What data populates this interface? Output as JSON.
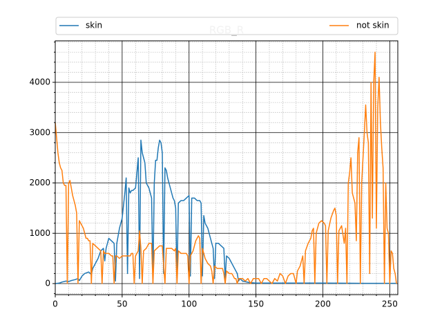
{
  "chart_data": {
    "type": "line",
    "title": "RGB_R",
    "xlim": [
      0,
      256
    ],
    "ylim": [
      -220,
      4825
    ],
    "xticks": [
      0,
      50,
      100,
      150,
      200,
      250
    ],
    "yticks": [
      0,
      1000,
      2000,
      3000,
      4000
    ],
    "xminorticks": [
      10,
      20,
      30,
      40,
      60,
      70,
      80,
      90,
      110,
      120,
      130,
      140,
      160,
      170,
      180,
      190,
      210,
      220,
      230,
      240
    ],
    "yminorticks": [
      -200,
      200,
      400,
      600,
      800,
      1200,
      1400,
      1600,
      1800,
      2200,
      2400,
      2600,
      2800,
      3200,
      3400,
      3600,
      3800,
      4200,
      4400,
      4600,
      4800
    ],
    "grid": true,
    "legend": "top",
    "series": [
      {
        "name": "skin",
        "color": "#1f77b4",
        "x": [
          0,
          3,
          5,
          8,
          10,
          12,
          15,
          17,
          18,
          20,
          22,
          25,
          27,
          28,
          30,
          32,
          34,
          36,
          37,
          38,
          40,
          42,
          44,
          45,
          46,
          48,
          50,
          52,
          53,
          54,
          55,
          56,
          57,
          58,
          60,
          61,
          62,
          63,
          64,
          65,
          66,
          67,
          68,
          70,
          71,
          72,
          73,
          74,
          75,
          76,
          77,
          78,
          79,
          80,
          81,
          82,
          83,
          84,
          86,
          88,
          89,
          90,
          91,
          92,
          94,
          96,
          98,
          100,
          101,
          102,
          104,
          106,
          108,
          109,
          110,
          111,
          112,
          114,
          116,
          118,
          119,
          120,
          122,
          124,
          126,
          127,
          128,
          130,
          132,
          134,
          136,
          137,
          138,
          140,
          145,
          150,
          170,
          200,
          230,
          255
        ],
        "values": [
          0,
          10,
          30,
          50,
          40,
          60,
          80,
          100,
          60,
          150,
          200,
          230,
          180,
          300,
          400,
          500,
          650,
          700,
          450,
          700,
          900,
          850,
          800,
          50,
          800,
          1100,
          1300,
          1800,
          2100,
          200,
          1900,
          1800,
          1850,
          1850,
          1900,
          2200,
          2500,
          100,
          2850,
          2600,
          2500,
          2400,
          2000,
          1900,
          1800,
          1700,
          100,
          2000,
          2450,
          2450,
          2700,
          2850,
          2800,
          2600,
          200,
          2300,
          2250,
          2100,
          1900,
          1700,
          1650,
          1500,
          100,
          1600,
          1650,
          1650,
          1700,
          1750,
          150,
          1700,
          1700,
          1650,
          1650,
          1600,
          150,
          1350,
          1200,
          1100,
          900,
          700,
          100,
          800,
          800,
          750,
          700,
          100,
          550,
          500,
          400,
          300,
          200,
          50,
          100,
          50,
          20,
          10,
          10,
          10,
          5,
          5
        ]
      },
      {
        "name": "not skin",
        "color": "#ff7f0e",
        "x": [
          0,
          1,
          2,
          3,
          4,
          5,
          6,
          7,
          8,
          9,
          10,
          11,
          12,
          13,
          14,
          15,
          16,
          17,
          18,
          19,
          20,
          21,
          22,
          23,
          24,
          25,
          26,
          27,
          28,
          30,
          32,
          34,
          35,
          36,
          37,
          38,
          40,
          42,
          43,
          44,
          45,
          46,
          48,
          50,
          52,
          54,
          56,
          57,
          58,
          59,
          60,
          62,
          63,
          64,
          65,
          66,
          68,
          70,
          72,
          73,
          74,
          76,
          78,
          80,
          82,
          83,
          85,
          87,
          89,
          90,
          91,
          92,
          94,
          96,
          98,
          99,
          100,
          101,
          103,
          105,
          107,
          108,
          109,
          110,
          112,
          114,
          116,
          117,
          118,
          119,
          121,
          123,
          125,
          126,
          127,
          128,
          130,
          132,
          134,
          135,
          136,
          137,
          140,
          142,
          144,
          146,
          148,
          150,
          152,
          154,
          156,
          158,
          160,
          162,
          164,
          166,
          168,
          170,
          172,
          174,
          176,
          178,
          180,
          181,
          183,
          185,
          186,
          187,
          189,
          191,
          192,
          193,
          194,
          195,
          197,
          199,
          201,
          202,
          203,
          204,
          206,
          208,
          209,
          210,
          211,
          212,
          214,
          216,
          217,
          218,
          219,
          220,
          221,
          222,
          223,
          224,
          225,
          226,
          227,
          228,
          229,
          230,
          231,
          232,
          233,
          234,
          235,
          236,
          237,
          238,
          239,
          240,
          241,
          242,
          243,
          244,
          245,
          246,
          247,
          248,
          249,
          250,
          251,
          252,
          253,
          254,
          255
        ],
        "values": [
          3200,
          2900,
          2600,
          2400,
          2300,
          2250,
          2000,
          1950,
          1950,
          0,
          2000,
          2050,
          1900,
          1750,
          1650,
          1550,
          1400,
          0,
          1250,
          1200,
          1150,
          1100,
          1000,
          900,
          900,
          850,
          850,
          0,
          800,
          750,
          700,
          650,
          0,
          650,
          600,
          600,
          600,
          550,
          550,
          0,
          550,
          550,
          500,
          550,
          550,
          550,
          550,
          600,
          600,
          0,
          550,
          650,
          1050,
          700,
          0,
          650,
          700,
          800,
          800,
          0,
          650,
          700,
          750,
          750,
          0,
          700,
          700,
          700,
          650,
          700,
          0,
          650,
          600,
          600,
          600,
          550,
          0,
          550,
          650,
          850,
          950,
          900,
          0,
          700,
          500,
          400,
          350,
          250,
          0,
          350,
          300,
          300,
          300,
          200,
          0,
          250,
          200,
          200,
          100,
          100,
          0,
          100,
          100,
          50,
          100,
          0,
          100,
          100,
          100,
          0,
          100,
          100,
          50,
          0,
          100,
          50,
          200,
          150,
          0,
          150,
          200,
          200,
          0,
          250,
          350,
          550,
          0,
          650,
          800,
          900,
          1050,
          1100,
          0,
          1000,
          1200,
          1250,
          1200,
          1150,
          0,
          1050,
          1300,
          1450,
          1500,
          1350,
          0,
          1050,
          1150,
          800,
          1100,
          0,
          2000,
          2200,
          2500,
          1800,
          1700,
          1600,
          850,
          2600,
          2900,
          0,
          2000,
          2500,
          3000,
          3550,
          3000,
          2800,
          200,
          4000,
          1300,
          4000,
          4600,
          1100,
          3500,
          4100,
          3200,
          2700,
          2300,
          0,
          2000,
          1100,
          1000,
          0,
          650,
          600,
          300,
          200,
          0
        ]
      }
    ]
  }
}
